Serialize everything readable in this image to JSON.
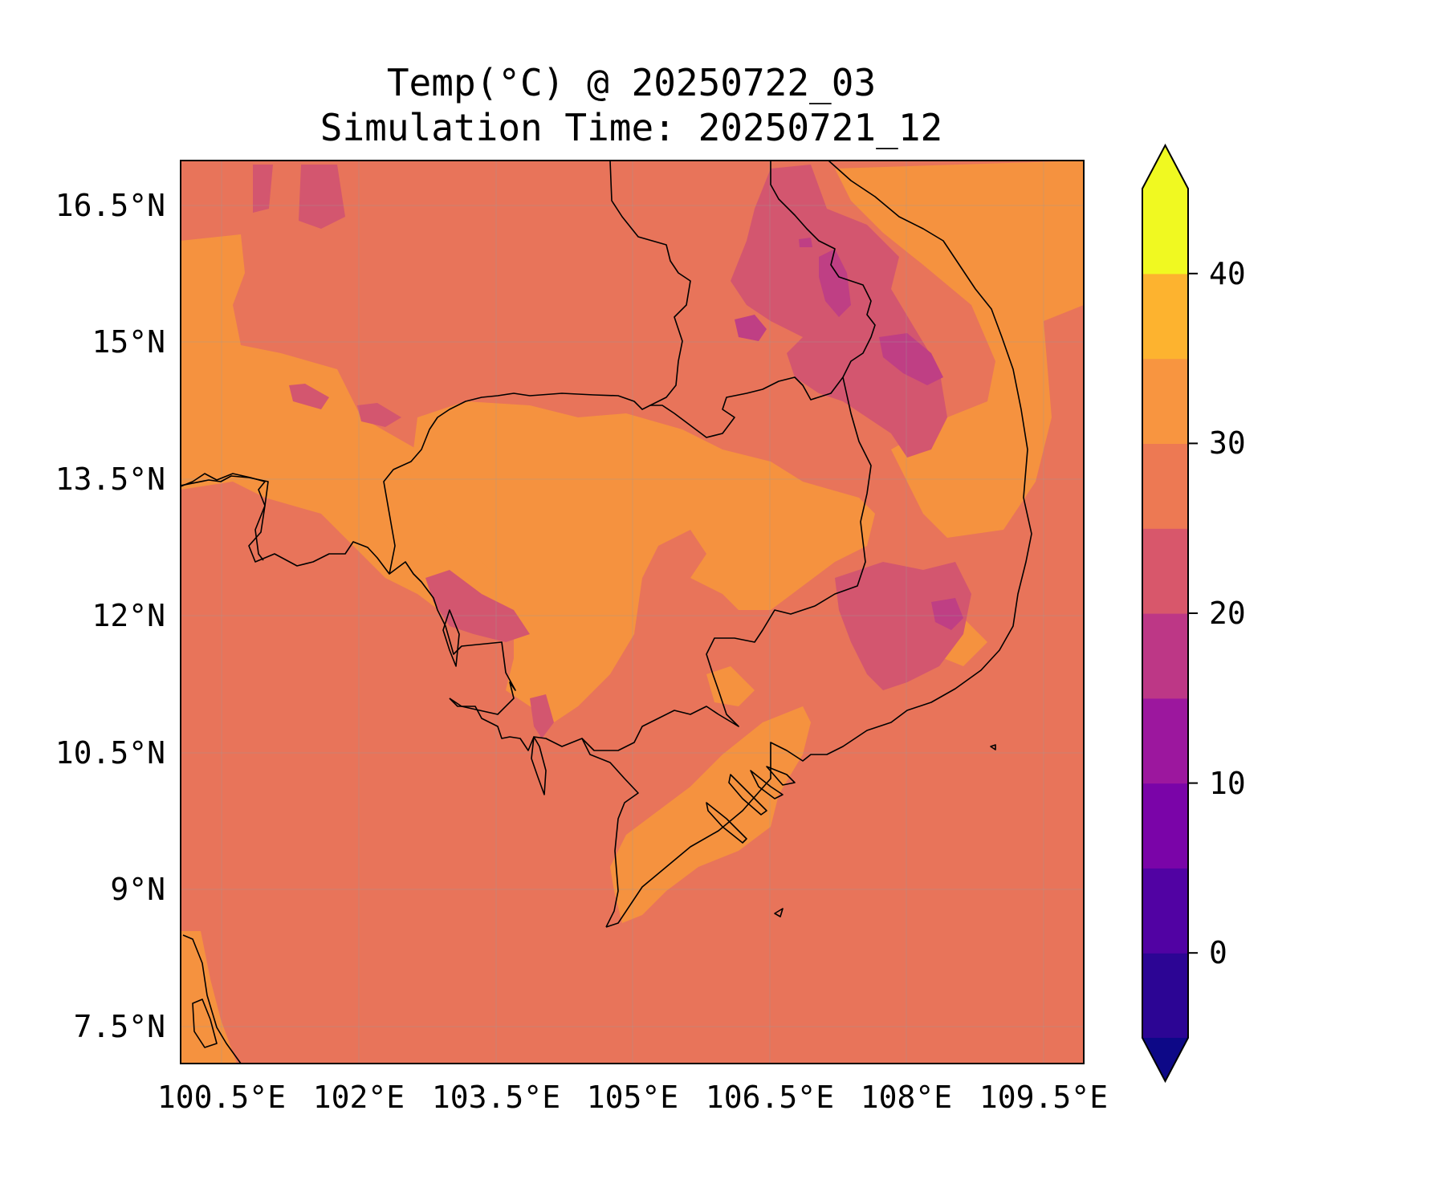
{
  "title": {
    "line1": "Temp(°C) @ 20250722_03",
    "line2": "Simulation Time: 20250721_12"
  },
  "map": {
    "lon_range": [
      100.2,
      109.8
    ],
    "lat_range": [
      7.2,
      17.1
    ],
    "lon_ticks": [
      "100.5°E",
      "102°E",
      "103.5°E",
      "105°E",
      "106.5°E",
      "108°E",
      "109.5°E"
    ],
    "lat_ticks": [
      "16.5°N",
      "15°N",
      "13.5°N",
      "12°N",
      "10.5°N",
      "9°N",
      "7.5°N"
    ],
    "gridlines": true,
    "background_value_band": "25-30",
    "colors": {
      "band_25_30": "#e8745a",
      "band_30_35": "#f5923f",
      "band_20_25": "#d3566f",
      "band_15_20": "#bf3f84",
      "coastline": "#000000"
    }
  },
  "colorbar": {
    "tick_labels": [
      "40",
      "30",
      "20",
      "10",
      "0"
    ],
    "levels": [
      -5,
      0,
      5,
      10,
      15,
      20,
      25,
      30,
      35,
      40,
      45
    ],
    "extend": "both",
    "colors": [
      "#0d0887",
      "#2c0594",
      "#5102a3",
      "#7a04a8",
      "#9c179e",
      "#bd3786",
      "#d8576b",
      "#ed7953",
      "#f89540",
      "#fdb32f",
      "#f0f921"
    ],
    "under_color": "#0d0887",
    "over_color": "#f0f921"
  }
}
